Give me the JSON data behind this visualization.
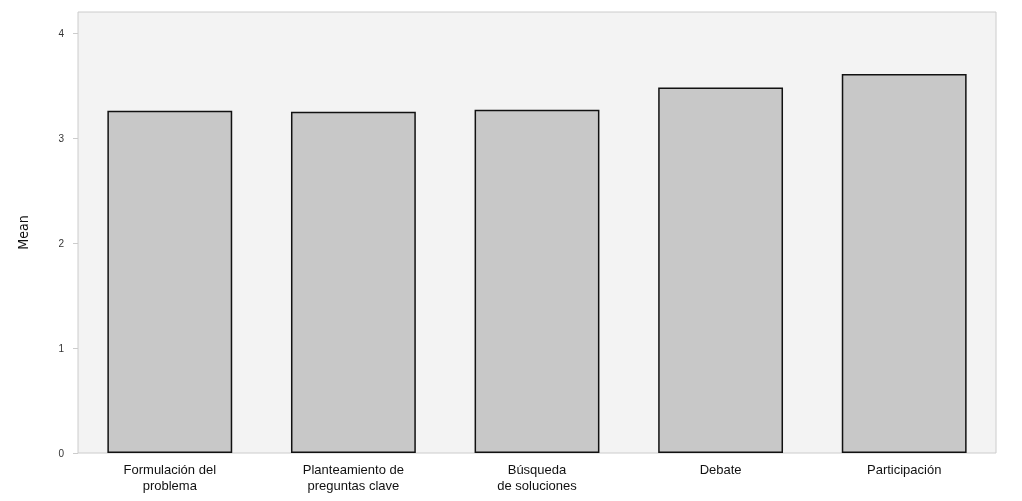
{
  "chart_data": {
    "type": "bar",
    "ylabel": "Mean",
    "categories": [
      "Formulación del\nproblema",
      "Planteamiento de\npreguntas clave",
      "Búsqueda\nde soluciones",
      "Debate",
      "Participación"
    ],
    "values": [
      3.26,
      3.25,
      3.27,
      3.48,
      3.61
    ],
    "color": "#c8c8c8",
    "ylim": [
      0,
      4.2
    ],
    "yticks": [
      0,
      1,
      2,
      3,
      4
    ],
    "grid": false
  }
}
